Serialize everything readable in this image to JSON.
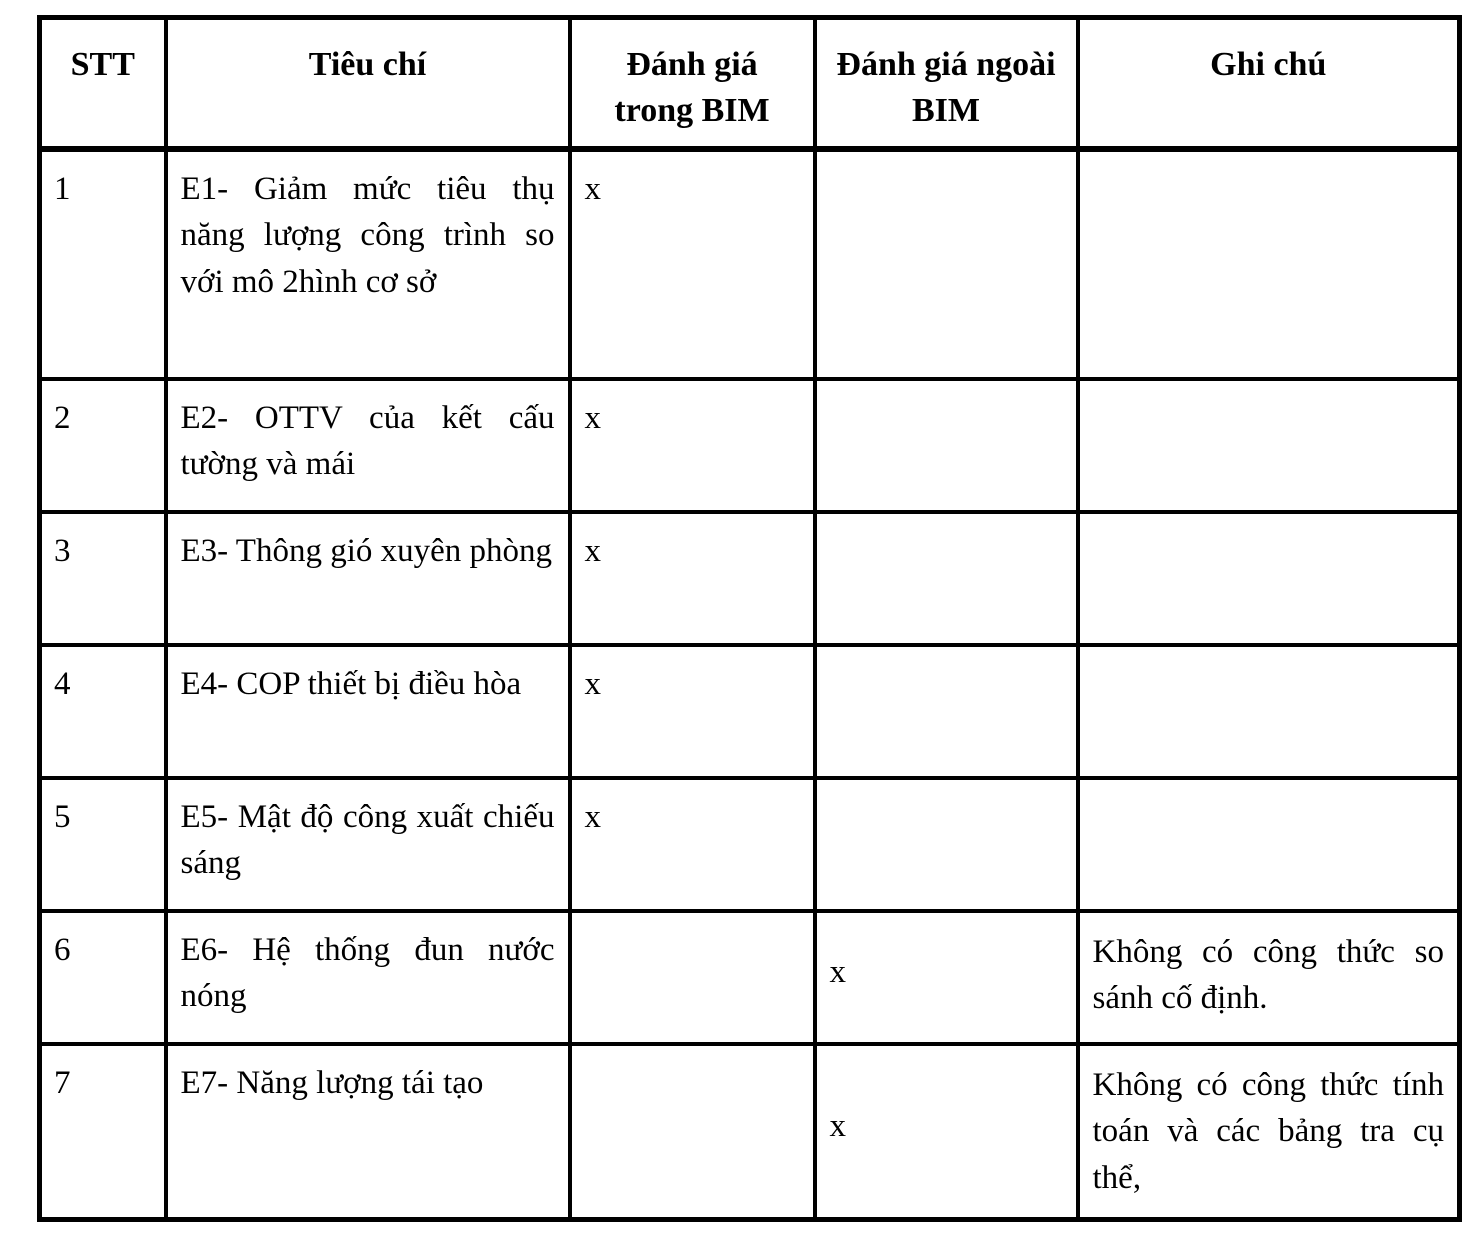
{
  "page": {
    "background_color": "#ffffff",
    "text_color": "#000000",
    "border_color": "#000000"
  },
  "table": {
    "headers": {
      "stt": "STT",
      "tieu_chi": "Tiêu chí",
      "trong_bim": "Đánh giá trong BIM",
      "ngoai_bim": "Đánh giá ngoài BIM",
      "ghi_chu": "Ghi chú"
    },
    "rows": [
      {
        "stt": "1",
        "tieu_chi": "E1- Giảm mức tiêu thụ năng lượng công trình so với mô 2hình cơ sở",
        "trong_bim": "x",
        "ngoai_bim": "",
        "ghi_chu": ""
      },
      {
        "stt": "2",
        "tieu_chi": "E2- OTTV của kết cấu tường và mái",
        "trong_bim": "x",
        "ngoai_bim": "",
        "ghi_chu": ""
      },
      {
        "stt": "3",
        "tieu_chi": "E3- Thông gió xuyên phòng",
        "trong_bim": "x",
        "ngoai_bim": "",
        "ghi_chu": ""
      },
      {
        "stt": "4",
        "tieu_chi": "E4- COP thiết bị điều hòa",
        "trong_bim": "x",
        "ngoai_bim": "",
        "ghi_chu": ""
      },
      {
        "stt": "5",
        "tieu_chi": "E5- Mật độ công xuất chiếu sáng",
        "trong_bim": "x",
        "ngoai_bim": "",
        "ghi_chu": ""
      },
      {
        "stt": "6",
        "tieu_chi": "E6- Hệ thống đun nước nóng",
        "trong_bim": "",
        "ngoai_bim": "x",
        "ghi_chu": "Không có công thức so sánh cố định."
      },
      {
        "stt": "7",
        "tieu_chi": "E7- Năng lượng tái tạo",
        "trong_bim": "",
        "ngoai_bim": "x",
        "ghi_chu": "Không có công thức tính toán và các bảng tra cụ thể,"
      }
    ]
  }
}
